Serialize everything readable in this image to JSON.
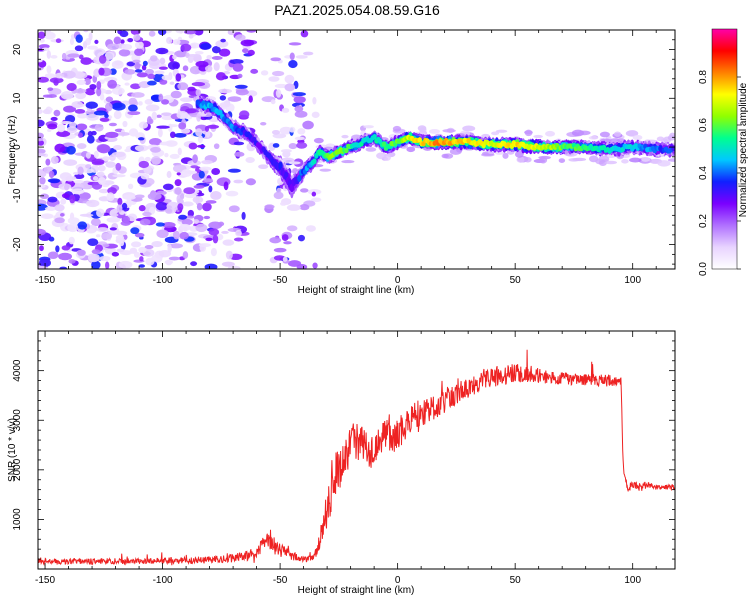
{
  "title": "PAZ1.2025.054.08.59.G16",
  "chart_data": [
    {
      "type": "heatmap",
      "xlabel": "Height of straight line (km)",
      "ylabel": "Frequency (Hz)",
      "xlim": [
        -153,
        118
      ],
      "ylim": [
        -25,
        24
      ],
      "xticks": [
        -150,
        -100,
        -50,
        0,
        50,
        100
      ],
      "yticks": [
        -20,
        -10,
        0,
        10,
        20
      ],
      "colorbar": {
        "label": "Normalized spectral amplitude",
        "range": [
          0,
          1
        ],
        "ticks": [
          0.0,
          0.2,
          0.4,
          0.6,
          0.8
        ],
        "tick_labels": [
          "0.0",
          "0.2",
          "0.4",
          "0.6",
          "0.8"
        ],
        "colors": [
          "#ffffff",
          "#e8d4ff",
          "#b070ff",
          "#7a00ff",
          "#1020ff",
          "#00c8ff",
          "#00ff90",
          "#90ff00",
          "#ffff00",
          "#ff8000",
          "#ff0000",
          "#ff00aa"
        ]
      },
      "ridge": {
        "x": [
          -85,
          -78,
          -70,
          -65,
          -60,
          -55,
          -50,
          -45,
          -40,
          -36,
          -33,
          -30,
          -25,
          -20,
          -15,
          -10,
          -5,
          0,
          5,
          10,
          15,
          20,
          30,
          40,
          50,
          60,
          70,
          80,
          90,
          100,
          110,
          118
        ],
        "y": [
          9,
          8,
          4,
          3,
          1,
          -2,
          -4,
          -8,
          -5,
          -3,
          -1,
          -2,
          -1,
          0,
          1,
          2,
          0,
          1,
          2,
          1,
          1,
          1,
          1,
          0.5,
          0.5,
          0,
          0,
          0,
          -0.5,
          0,
          -0.5,
          -0.5
        ],
        "amplitude": [
          0.4,
          0.45,
          0.4,
          0.35,
          0.3,
          0.3,
          0.35,
          0.3,
          0.4,
          0.45,
          0.55,
          0.6,
          0.65,
          0.55,
          0.5,
          0.5,
          0.55,
          0.6,
          0.7,
          0.75,
          0.8,
          0.8,
          0.75,
          0.7,
          0.75,
          0.7,
          0.6,
          0.55,
          0.5,
          0.45,
          0.4,
          0.35
        ],
        "width_hz": [
          2,
          2,
          2,
          2,
          2,
          2,
          3,
          3,
          2,
          2,
          2,
          1.8,
          1.8,
          1.8,
          1.8,
          1.8,
          1.8,
          1.8,
          1.8,
          1.8,
          1.8,
          1.8,
          1.8,
          1.8,
          1.8,
          1.8,
          1.8,
          1.8,
          1.8,
          1.8,
          1.8,
          1.8
        ]
      }
    },
    {
      "type": "line",
      "xlabel": "Height of straight line (km)",
      "ylabel": "SNR (10 * v/v)",
      "xlim": [
        -153,
        118
      ],
      "ylim": [
        0,
        4800
      ],
      "xticks": [
        -150,
        -100,
        -50,
        0,
        50,
        100
      ],
      "yticks": [
        1000,
        2000,
        3000,
        4000
      ],
      "series": [
        {
          "color": "#ee2222",
          "x": [
            -153,
            -140,
            -120,
            -110,
            -100,
            -90,
            -80,
            -70,
            -65,
            -60,
            -57,
            -55,
            -53,
            -51,
            -49,
            -47,
            -45,
            -42,
            -39,
            -36,
            -34,
            -32,
            -30,
            -28,
            -26,
            -24,
            -22,
            -20,
            -18,
            -15,
            -12,
            -10,
            -8,
            -5,
            -2,
            0,
            3,
            6,
            10,
            15,
            20,
            25,
            30,
            35,
            40,
            45,
            50,
            55,
            60,
            65,
            70,
            75,
            80,
            85,
            90,
            93,
            95,
            96,
            98,
            100,
            102,
            104,
            106,
            110,
            114,
            118
          ],
          "y": [
            150,
            150,
            160,
            160,
            170,
            170,
            180,
            220,
            260,
            320,
            480,
            650,
            500,
            380,
            420,
            350,
            260,
            200,
            190,
            220,
            400,
            800,
            1200,
            1700,
            2000,
            2100,
            2300,
            2500,
            2600,
            2500,
            2400,
            2400,
            2600,
            2750,
            2600,
            2700,
            2900,
            3050,
            3150,
            3250,
            3400,
            3550,
            3650,
            3750,
            3850,
            3900,
            3950,
            3950,
            3900,
            3850,
            3850,
            3830,
            3820,
            3800,
            3800,
            3790,
            3780,
            2000,
            1650,
            1700,
            1650,
            1650,
            1700,
            1650,
            1650,
            1650
          ],
          "noise": [
            100,
            100,
            100,
            100,
            100,
            110,
            120,
            140,
            160,
            200,
            300,
            400,
            350,
            300,
            300,
            250,
            180,
            120,
            100,
            100,
            200,
            500,
            700,
            900,
            800,
            700,
            700,
            700,
            700,
            600,
            600,
            600,
            600,
            550,
            550,
            550,
            500,
            500,
            450,
            420,
            400,
            380,
            350,
            340,
            340,
            330,
            320,
            300,
            250,
            220,
            200,
            200,
            200,
            200,
            200,
            200,
            200,
            150,
            150,
            150,
            150,
            150,
            120,
            100,
            80,
            80
          ]
        }
      ]
    }
  ]
}
